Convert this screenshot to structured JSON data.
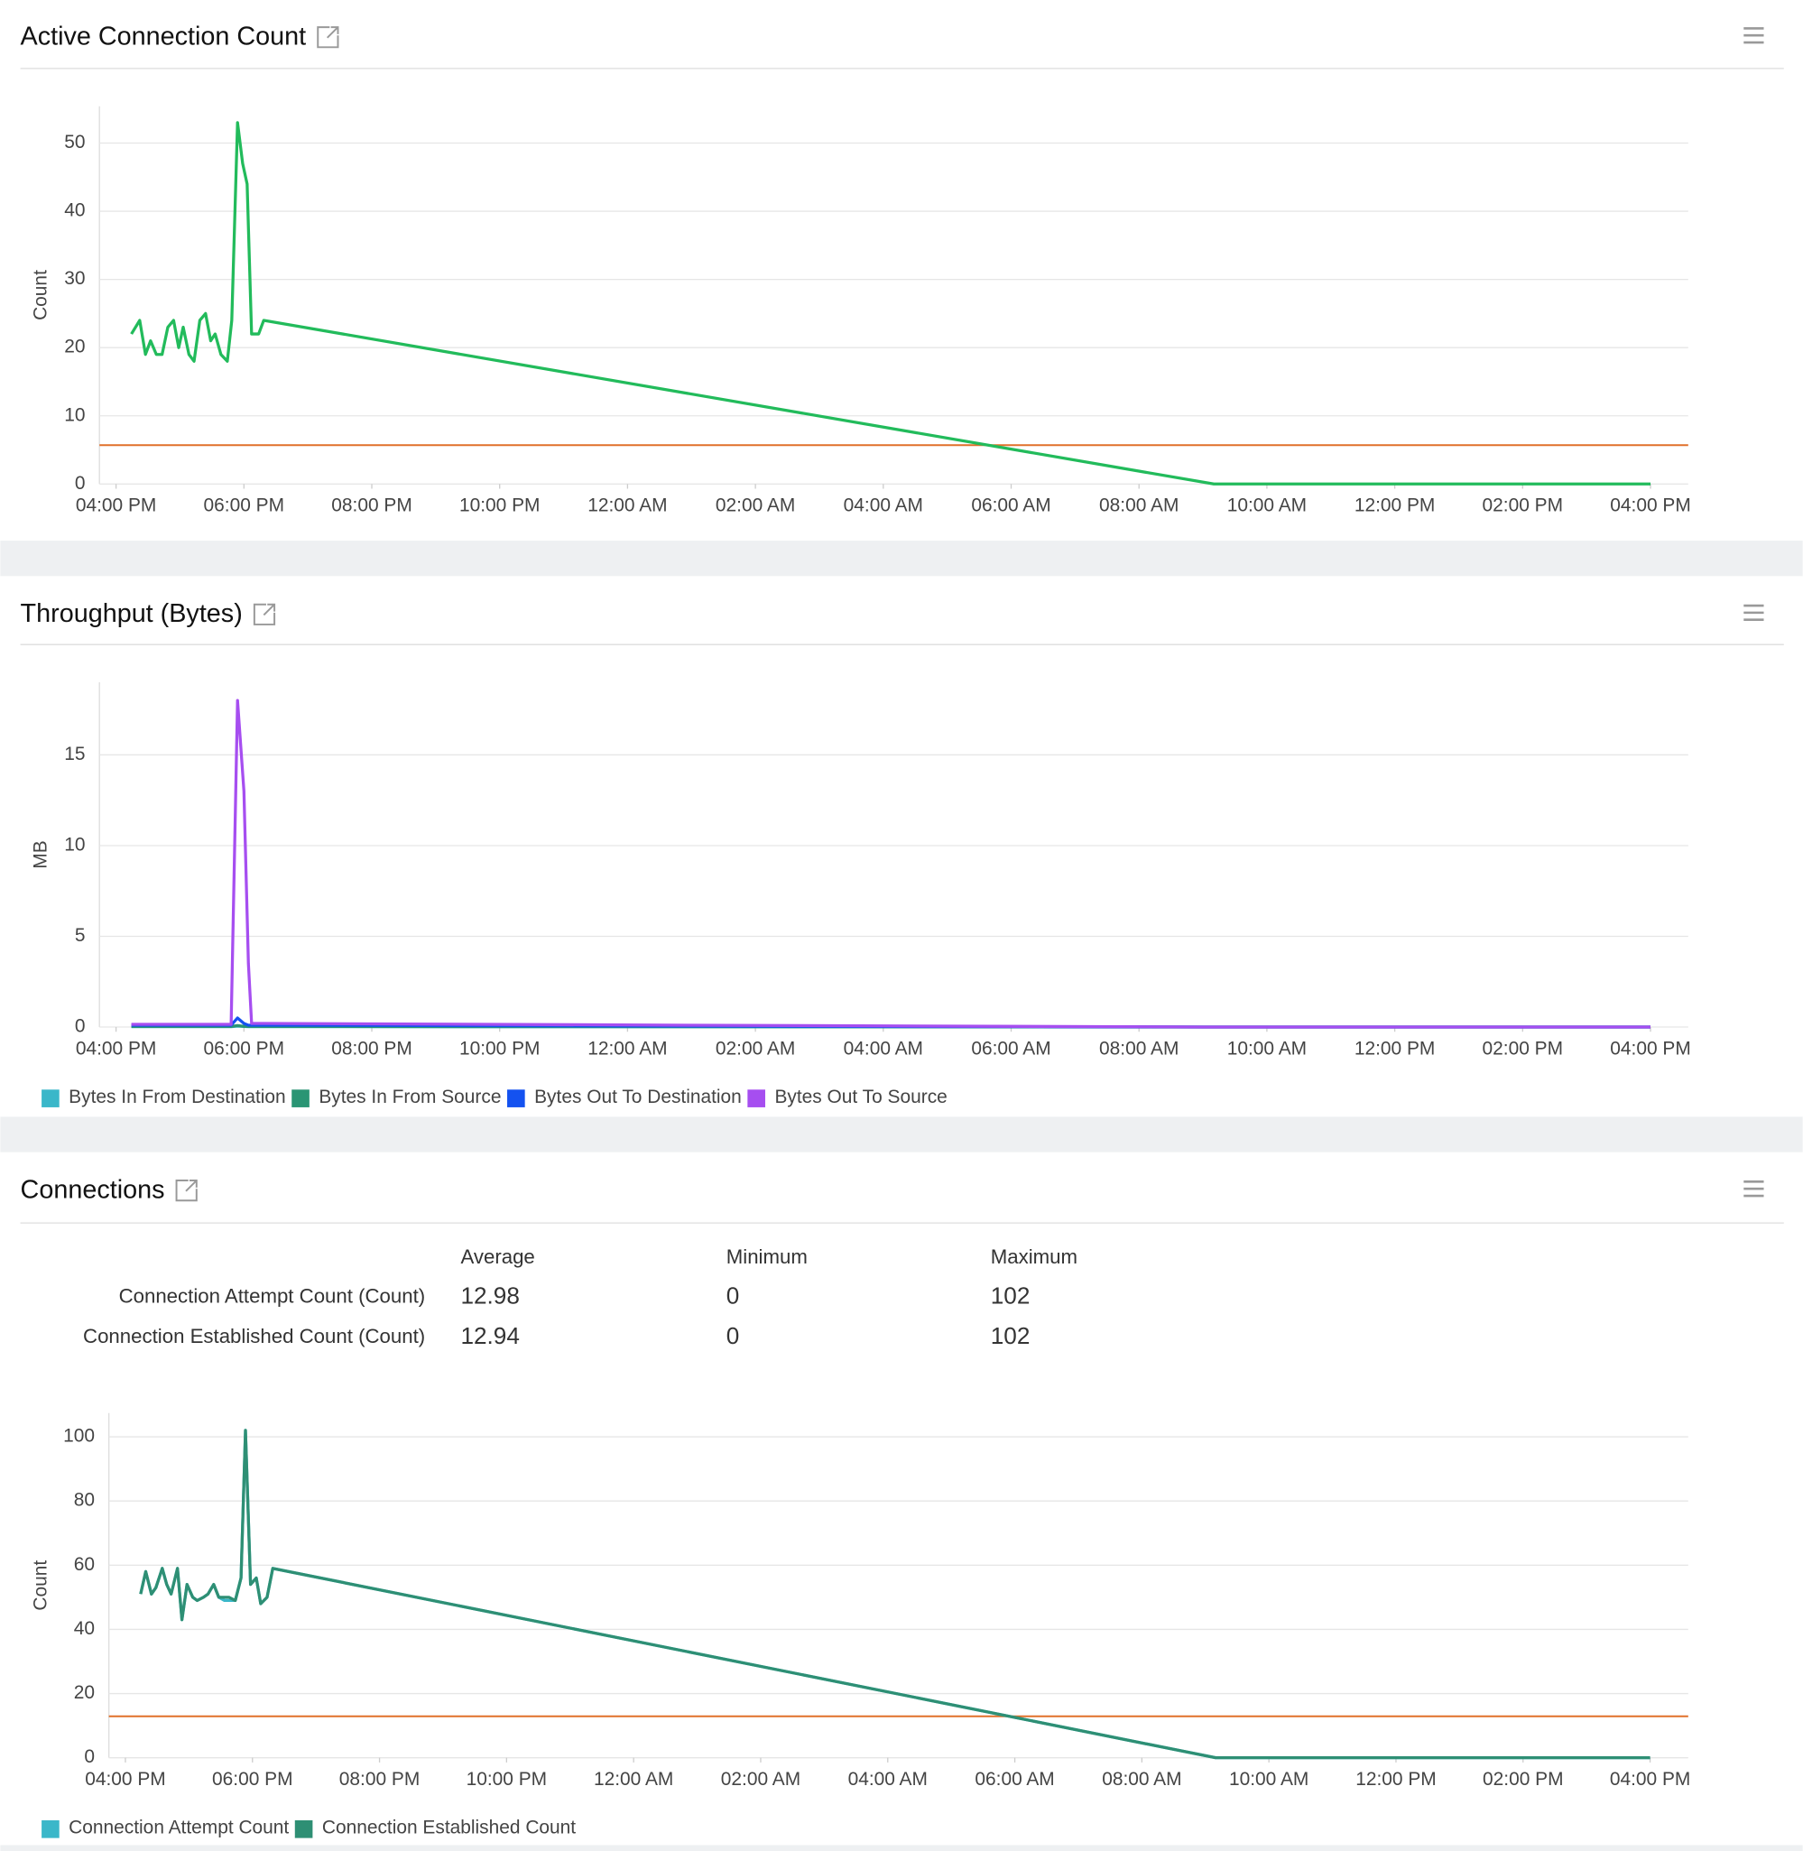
{
  "chart_data": [
    {
      "type": "line",
      "title": "Active Connection Count",
      "ylabel": "Count",
      "xlim": [
        -0.26,
        24.59
      ],
      "ylim": [
        0,
        55.4
      ],
      "xticks": [
        {
          "value": 0,
          "label": "04:00 PM"
        },
        {
          "value": 2,
          "label": "06:00 PM"
        },
        {
          "value": 4,
          "label": "08:00 PM"
        },
        {
          "value": 6,
          "label": "10:00 PM"
        },
        {
          "value": 8,
          "label": "12:00 AM"
        },
        {
          "value": 10,
          "label": "02:00 AM"
        },
        {
          "value": 12,
          "label": "04:00 AM"
        },
        {
          "value": 14,
          "label": "06:00 AM"
        },
        {
          "value": 16,
          "label": "08:00 AM"
        },
        {
          "value": 18,
          "label": "10:00 AM"
        },
        {
          "value": 20,
          "label": "12:00 PM"
        },
        {
          "value": 22,
          "label": "02:00 PM"
        },
        {
          "value": 24,
          "label": "04:00 PM"
        }
      ],
      "yticks": [
        0,
        10,
        20,
        30,
        40,
        50
      ],
      "grid": true,
      "threshold": 5.7,
      "threshold_color": "#e0702a",
      "x": [
        0.24,
        0.37,
        0.46,
        0.54,
        0.63,
        0.72,
        0.81,
        0.9,
        0.98,
        1.05,
        1.14,
        1.22,
        1.31,
        1.4,
        1.48,
        1.55,
        1.64,
        1.74,
        1.81,
        1.9,
        1.98,
        2.05,
        2.12,
        2.23,
        2.31,
        17.17,
        24
      ],
      "series": [
        {
          "color": "#22bb5b",
          "values": [
            22,
            24,
            19,
            21,
            19,
            19,
            23,
            24,
            20,
            23,
            19,
            18,
            24,
            25,
            21,
            22,
            19,
            18,
            24,
            53,
            47,
            44,
            22,
            22,
            24,
            0,
            0
          ]
        }
      ]
    },
    {
      "type": "line",
      "title": "Throughput (Bytes)",
      "ylabel": "MB",
      "xlim": [
        -0.26,
        24.59
      ],
      "ylim": [
        0,
        19
      ],
      "xticks": [
        {
          "value": 0,
          "label": "04:00 PM"
        },
        {
          "value": 2,
          "label": "06:00 PM"
        },
        {
          "value": 4,
          "label": "08:00 PM"
        },
        {
          "value": 6,
          "label": "10:00 PM"
        },
        {
          "value": 8,
          "label": "12:00 AM"
        },
        {
          "value": 10,
          "label": "02:00 AM"
        },
        {
          "value": 12,
          "label": "04:00 AM"
        },
        {
          "value": 14,
          "label": "06:00 AM"
        },
        {
          "value": 16,
          "label": "08:00 AM"
        },
        {
          "value": 18,
          "label": "10:00 AM"
        },
        {
          "value": 20,
          "label": "12:00 PM"
        },
        {
          "value": 22,
          "label": "02:00 PM"
        },
        {
          "value": 24,
          "label": "04:00 PM"
        }
      ],
      "yticks": [
        0,
        5,
        10,
        15
      ],
      "grid": true,
      "x": [
        0.24,
        0.5,
        0.8,
        1.1,
        1.4,
        1.8,
        1.9,
        2.0,
        2.07,
        2.12,
        2.3,
        9,
        17,
        24
      ],
      "series": [
        {
          "name": "Bytes In From Destination",
          "color": "#3ab7c9",
          "values": [
            0.02,
            0.02,
            0.02,
            0.02,
            0.02,
            0.02,
            0.05,
            0.03,
            0.02,
            0.02,
            0.02,
            0.01,
            0,
            0
          ]
        },
        {
          "name": "Bytes In From Source",
          "color": "#2a9574",
          "values": [
            0.03,
            0.03,
            0.03,
            0.03,
            0.03,
            0.03,
            0.08,
            0.04,
            0.03,
            0.03,
            0.03,
            0.02,
            0,
            0
          ]
        },
        {
          "name": "Bytes Out To Destination",
          "color": "#1452f0",
          "values": [
            0.1,
            0.1,
            0.1,
            0.1,
            0.1,
            0.1,
            0.5,
            0.2,
            0.1,
            0.1,
            0.1,
            0.05,
            0,
            0
          ]
        },
        {
          "name": "Bytes Out To Source",
          "color": "#a64ef0",
          "values": [
            0.15,
            0.15,
            0.15,
            0.15,
            0.15,
            0.15,
            18,
            13,
            3.5,
            0.2,
            0.2,
            0.1,
            0,
            0
          ]
        }
      ]
    },
    {
      "type": "line",
      "title": "Connections",
      "ylabel": "Count",
      "xlim": [
        -0.26,
        24.6
      ],
      "ylim": [
        0,
        107.4
      ],
      "xticks": [
        {
          "value": 0,
          "label": "04:00 PM"
        },
        {
          "value": 2,
          "label": "06:00 PM"
        },
        {
          "value": 4,
          "label": "08:00 PM"
        },
        {
          "value": 6,
          "label": "10:00 PM"
        },
        {
          "value": 8,
          "label": "12:00 AM"
        },
        {
          "value": 10,
          "label": "02:00 AM"
        },
        {
          "value": 12,
          "label": "04:00 AM"
        },
        {
          "value": 14,
          "label": "06:00 AM"
        },
        {
          "value": 16,
          "label": "08:00 AM"
        },
        {
          "value": 18,
          "label": "10:00 AM"
        },
        {
          "value": 20,
          "label": "12:00 PM"
        },
        {
          "value": 22,
          "label": "02:00 PM"
        },
        {
          "value": 24,
          "label": "04:00 PM"
        }
      ],
      "yticks": [
        0,
        20,
        40,
        60,
        80,
        100
      ],
      "grid": true,
      "threshold": 12.9,
      "threshold_color": "#e0702a",
      "x": [
        0.24,
        0.32,
        0.41,
        0.48,
        0.58,
        0.65,
        0.72,
        0.82,
        0.89,
        0.97,
        1.06,
        1.13,
        1.23,
        1.3,
        1.39,
        1.47,
        1.56,
        1.63,
        1.73,
        1.82,
        1.89,
        1.97,
        2.06,
        2.13,
        2.23,
        2.32,
        17.16,
        24
      ],
      "series": [
        {
          "name": "Connection Attempt Count",
          "color": "#3ab7c9",
          "values": [
            51,
            58,
            51,
            53,
            59,
            54,
            51,
            59,
            43,
            54,
            50,
            49,
            50,
            51,
            54,
            50,
            49,
            49,
            49,
            56,
            102,
            54,
            56,
            48,
            50,
            59,
            0,
            0
          ]
        },
        {
          "name": "Connection Established Count",
          "color": "#2e8f74",
          "values": [
            51,
            58,
            51,
            53,
            59,
            54,
            51,
            59,
            43,
            54,
            50,
            49,
            50,
            51,
            54,
            50,
            50,
            50,
            49,
            56,
            102,
            54,
            56,
            48,
            50,
            59,
            0,
            0
          ]
        }
      ]
    }
  ],
  "table": {
    "columns": [
      "Average",
      "Minimum",
      "Maximum"
    ],
    "rows": [
      {
        "label": "Connection Attempt Count (Count)",
        "values": [
          12.98,
          0,
          102
        ]
      },
      {
        "label": "Connection Established Count (Count)",
        "values": [
          12.94,
          0,
          102
        ]
      }
    ]
  }
}
